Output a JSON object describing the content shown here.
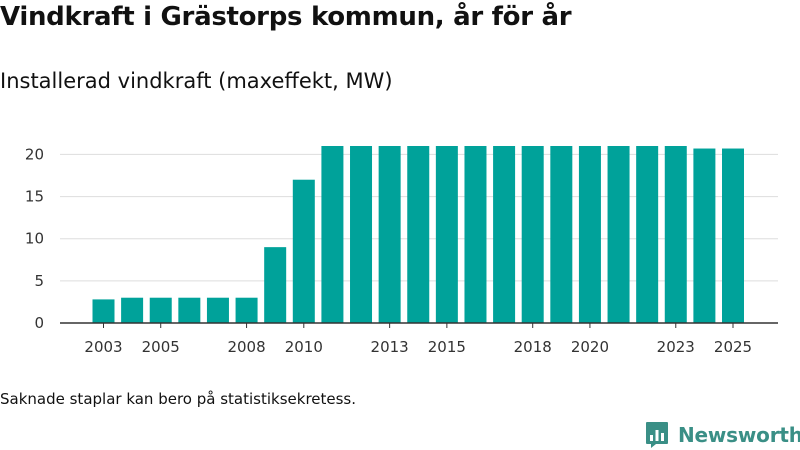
{
  "title": "Vindkraft i Grästorps kommun, år för år",
  "subtitle": "Installerad vindkraft (maxeffekt, MW)",
  "footnote": "Saknade staplar kan bero på statistiksekretess.",
  "brand": {
    "name": "Newsworthy",
    "icon": "newsworthy-logo-icon",
    "color": "#3a8f86"
  },
  "colors": {
    "bar": "#00a29a",
    "grid": "#dddddd",
    "axis": "#333333"
  },
  "chart_data": {
    "type": "bar",
    "title": "Vindkraft i Grästorps kommun, år för år",
    "subtitle": "Installerad vindkraft (maxeffekt, MW)",
    "xlabel": "",
    "ylabel": "Installerad vindkraft (maxeffekt, MW)",
    "categories": [
      "2003",
      "2004",
      "2005",
      "2006",
      "2007",
      "2008",
      "2009",
      "2010",
      "2011",
      "2012",
      "2013",
      "2014",
      "2015",
      "2016",
      "2017",
      "2018",
      "2019",
      "2020",
      "2021",
      "2022",
      "2023",
      "2024",
      "2025"
    ],
    "values": [
      2.8,
      3.0,
      3.0,
      3.0,
      3.0,
      3.0,
      9.0,
      17.0,
      21.0,
      21.0,
      21.0,
      21.0,
      21.0,
      21.0,
      21.0,
      21.0,
      21.0,
      21.0,
      21.0,
      21.0,
      21.0,
      20.7,
      20.7
    ],
    "x_tick_labels": [
      "2003",
      "2005",
      "2008",
      "2010",
      "2013",
      "2015",
      "2018",
      "2020",
      "2023",
      "2025"
    ],
    "y_ticks": [
      0,
      5,
      10,
      15,
      20
    ],
    "ylim": [
      0,
      21
    ],
    "grid": true,
    "legend": "none"
  }
}
